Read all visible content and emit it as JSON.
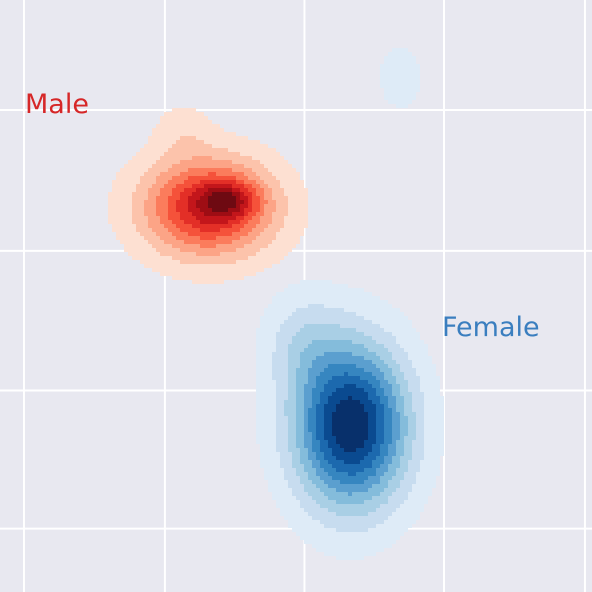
{
  "chart_data": {
    "type": "kde-contour",
    "grid": true,
    "background_color": "#e8e8f0",
    "gridline_color": "#ffffff",
    "xlim": [
      0,
      4.2
    ],
    "ylim": [
      0,
      4.2
    ],
    "x_gridlines": [
      0.17,
      1.17,
      2.16,
      3.15,
      4.15
    ],
    "y_gridlines": [
      0.45,
      1.43,
      2.42,
      3.42
    ],
    "series": [
      {
        "name": "Male",
        "colors": [
          "#fde0d2",
          "#fcc3ab",
          "#fca486",
          "#fb7c5c",
          "#f5523a",
          "#e32f27",
          "#c3161b",
          "#9e0d14",
          "#6e0a12"
        ],
        "components": [
          {
            "cx": 1.48,
            "cy": 2.73,
            "sx": 0.32,
            "sy": 0.24,
            "w": 1.0
          },
          {
            "cx": 1.62,
            "cy": 2.78,
            "sx": 0.14,
            "sy": 0.09,
            "w": 0.45
          },
          {
            "cx": 1.3,
            "cy": 3.28,
            "sx": 0.14,
            "sy": 0.14,
            "w": 0.14
          }
        ]
      },
      {
        "name": "Female",
        "colors": [
          "#deebf7",
          "#c7dcef",
          "#a9cfe5",
          "#84bcdb",
          "#5b9fcf",
          "#3686c0",
          "#1c69ae",
          "#0a4a90",
          "#08306b"
        ],
        "components": [
          {
            "cx": 2.49,
            "cy": 1.18,
            "sx": 0.28,
            "sy": 0.4,
            "w": 1.0
          },
          {
            "cx": 2.15,
            "cy": 1.78,
            "sx": 0.2,
            "sy": 0.25,
            "w": 0.18
          },
          {
            "cx": 2.84,
            "cy": 3.65,
            "sx": 0.12,
            "sy": 0.18,
            "w": 0.12
          }
        ]
      }
    ]
  }
}
